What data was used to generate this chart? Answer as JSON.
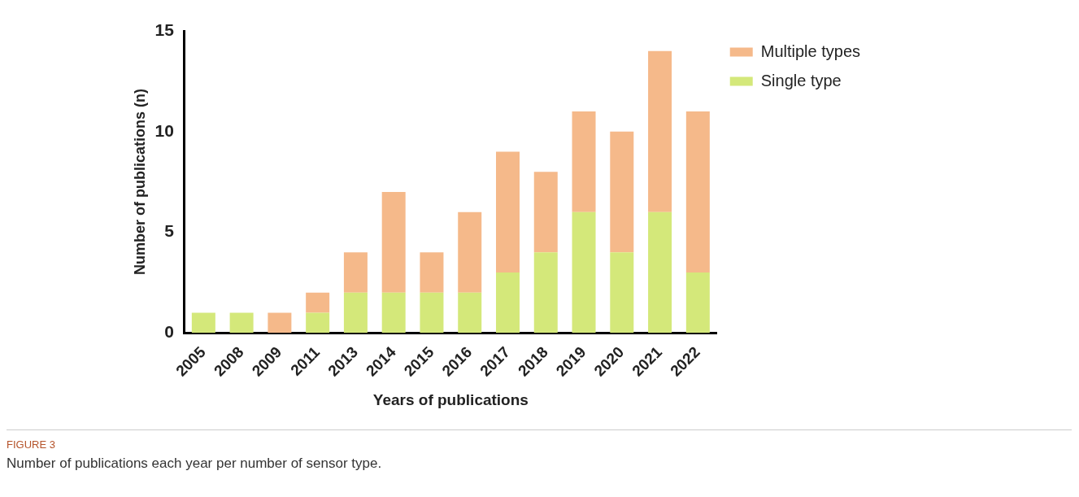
{
  "chart_data": {
    "type": "bar",
    "xlabel": "Years of publications",
    "ylabel": "Number of publications (n)",
    "categories": [
      "2005",
      "2008",
      "2009",
      "2011",
      "2013",
      "2014",
      "2015",
      "2016",
      "2017",
      "2018",
      "2019",
      "2020",
      "2021",
      "2022"
    ],
    "series": [
      {
        "name": "Single type",
        "color": "#d4e87a",
        "values": [
          1,
          1,
          0,
          1,
          2,
          2,
          2,
          2,
          3,
          4,
          6,
          4,
          6,
          3
        ]
      },
      {
        "name": "Multiple types",
        "color": "#f5b98a",
        "values": [
          0,
          0,
          1,
          1,
          2,
          5,
          2,
          4,
          6,
          4,
          5,
          6,
          8,
          8
        ]
      }
    ],
    "stacked": true,
    "ylim": [
      0,
      15
    ],
    "yticks": [
      0,
      5,
      10,
      15
    ],
    "grid": false,
    "legend": "top right",
    "annotations": [
      "FIGURE 3",
      "Number of publications each year per number of sensor type."
    ]
  }
}
